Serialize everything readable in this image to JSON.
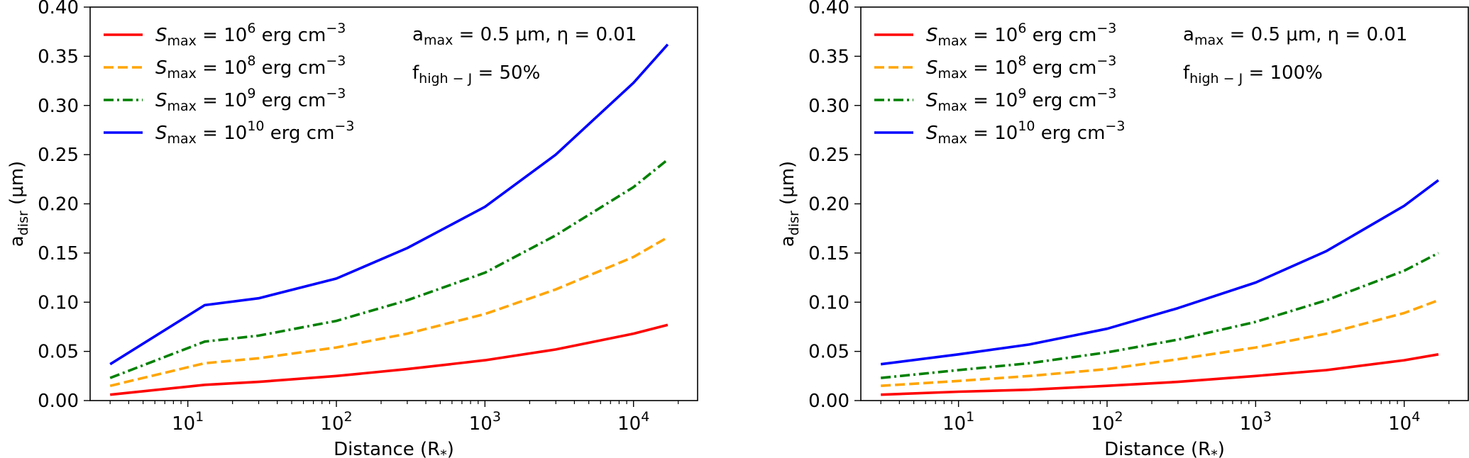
{
  "chart_data": [
    {
      "type": "line",
      "xscale": "log",
      "xlabel": "Distance (R",
      "xlabel_sub": "*",
      "ylabel": "a",
      "ylabel_sub": "disr",
      "ylabel_unit": " (μm)",
      "xlim": [
        2.2,
        27000
      ],
      "ylim": [
        0,
        0.4
      ],
      "yticks": [
        "0.00",
        "0.05",
        "0.10",
        "0.15",
        "0.20",
        "0.25",
        "0.30",
        "0.35",
        "0.40"
      ],
      "xticks": [
        {
          "base": "10",
          "exp": "1",
          "value": 10
        },
        {
          "base": "10",
          "exp": "2",
          "value": 100
        },
        {
          "base": "10",
          "exp": "3",
          "value": 1000
        },
        {
          "base": "10",
          "exp": "4",
          "value": 10000
        }
      ],
      "annotation1": {
        "a": "a",
        "sub": "max",
        "rest": " = 0.5 μm,  η = 0.01"
      },
      "annotation2": {
        "f": "f",
        "sub": "high − J",
        "rest": " = 50%"
      },
      "legend_position": "top-left",
      "series": [
        {
          "name": "Smax = 10^6 erg cm^-3",
          "label": {
            "s": "S",
            "sub": "max",
            "mid": " = 10",
            "exp": "6",
            "unit": " erg cm",
            "unitexp": "−3"
          },
          "color": "#ff0000",
          "dash": "solid",
          "x": [
            3,
            13,
            30,
            100,
            300,
            1000,
            3000,
            10000,
            17000
          ],
          "y": [
            0.006,
            0.016,
            0.019,
            0.025,
            0.032,
            0.041,
            0.052,
            0.068,
            0.077
          ]
        },
        {
          "name": "Smax = 10^8 erg cm^-3",
          "label": {
            "s": "S",
            "sub": "max",
            "mid": " = 10",
            "exp": "8",
            "unit": " erg cm",
            "unitexp": "−3"
          },
          "color": "#ffa500",
          "dash": "dashed",
          "x": [
            3,
            13,
            30,
            100,
            300,
            1000,
            3000,
            10000,
            17000
          ],
          "y": [
            0.015,
            0.038,
            0.043,
            0.054,
            0.068,
            0.088,
            0.113,
            0.146,
            0.166
          ]
        },
        {
          "name": "Smax = 10^9 erg cm^-3",
          "label": {
            "s": "S",
            "sub": "max",
            "mid": " = 10",
            "exp": "9",
            "unit": " erg cm",
            "unitexp": "−3"
          },
          "color": "#008000",
          "dash": "dashdot",
          "x": [
            3,
            13,
            30,
            100,
            300,
            1000,
            3000,
            10000,
            17000
          ],
          "y": [
            0.023,
            0.06,
            0.066,
            0.081,
            0.102,
            0.13,
            0.168,
            0.217,
            0.245
          ]
        },
        {
          "name": "Smax = 10^10 erg cm^-3",
          "label": {
            "s": "S",
            "sub": "max",
            "mid": " = 10",
            "exp": "10",
            "unit": " erg cm",
            "unitexp": "−3"
          },
          "color": "#0000ff",
          "dash": "solid",
          "x": [
            3,
            13,
            30,
            100,
            300,
            1000,
            3000,
            10000,
            17000
          ],
          "y": [
            0.037,
            0.097,
            0.104,
            0.124,
            0.155,
            0.197,
            0.25,
            0.323,
            0.362
          ]
        }
      ]
    },
    {
      "type": "line",
      "xscale": "log",
      "xlabel": "Distance (R",
      "xlabel_sub": "*",
      "ylabel": "a",
      "ylabel_sub": "disr",
      "ylabel_unit": " (μm)",
      "xlim": [
        2.2,
        27000
      ],
      "ylim": [
        0,
        0.4
      ],
      "yticks": [
        "0.00",
        "0.05",
        "0.10",
        "0.15",
        "0.20",
        "0.25",
        "0.30",
        "0.35",
        "0.40"
      ],
      "xticks": [
        {
          "base": "10",
          "exp": "1",
          "value": 10
        },
        {
          "base": "10",
          "exp": "2",
          "value": 100
        },
        {
          "base": "10",
          "exp": "3",
          "value": 1000
        },
        {
          "base": "10",
          "exp": "4",
          "value": 10000
        }
      ],
      "annotation1": {
        "a": "a",
        "sub": "max",
        "rest": " = 0.5 μm,  η = 0.01"
      },
      "annotation2": {
        "f": "f",
        "sub": "high − J",
        "rest": " = 100%"
      },
      "legend_position": "top-left",
      "series": [
        {
          "name": "Smax = 10^6 erg cm^-3",
          "label": {
            "s": "S",
            "sub": "max",
            "mid": " = 10",
            "exp": "6",
            "unit": " erg cm",
            "unitexp": "−3"
          },
          "color": "#ff0000",
          "dash": "solid",
          "x": [
            3,
            10,
            30,
            100,
            300,
            1000,
            3000,
            10000,
            17000
          ],
          "y": [
            0.006,
            0.009,
            0.011,
            0.015,
            0.019,
            0.025,
            0.031,
            0.041,
            0.047
          ]
        },
        {
          "name": "Smax = 10^8 erg cm^-3",
          "label": {
            "s": "S",
            "sub": "max",
            "mid": " = 10",
            "exp": "8",
            "unit": " erg cm",
            "unitexp": "−3"
          },
          "color": "#ffa500",
          "dash": "dashed",
          "x": [
            3,
            10,
            30,
            100,
            300,
            1000,
            3000,
            10000,
            17000
          ],
          "y": [
            0.015,
            0.02,
            0.025,
            0.032,
            0.042,
            0.054,
            0.068,
            0.089,
            0.102
          ]
        },
        {
          "name": "Smax = 10^9 erg cm^-3",
          "label": {
            "s": "S",
            "sub": "max",
            "mid": " = 10",
            "exp": "9",
            "unit": " erg cm",
            "unitexp": "−3"
          },
          "color": "#008000",
          "dash": "dashdot",
          "x": [
            3,
            10,
            30,
            100,
            300,
            1000,
            3000,
            10000,
            17000
          ],
          "y": [
            0.023,
            0.031,
            0.038,
            0.049,
            0.062,
            0.08,
            0.102,
            0.132,
            0.15
          ]
        },
        {
          "name": "Smax = 10^10 erg cm^-3",
          "label": {
            "s": "S",
            "sub": "max",
            "mid": " = 10",
            "exp": "10",
            "unit": " erg cm",
            "unitexp": "−3"
          },
          "color": "#0000ff",
          "dash": "solid",
          "x": [
            3,
            10,
            30,
            100,
            300,
            1000,
            3000,
            10000,
            17000
          ],
          "y": [
            0.037,
            0.047,
            0.057,
            0.073,
            0.094,
            0.12,
            0.152,
            0.198,
            0.224
          ]
        }
      ]
    }
  ]
}
